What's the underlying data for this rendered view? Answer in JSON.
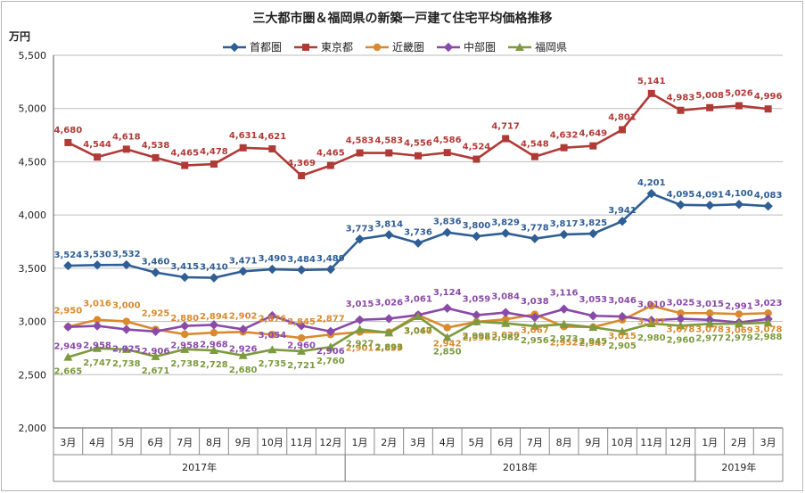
{
  "chart_data": {
    "type": "line",
    "title": "三大都市圏＆福岡県の新築一戸建て住宅平均価格推移",
    "ylabel": "万円",
    "ylim": [
      2000,
      5500
    ],
    "yticks": [
      "2,000",
      "2,500",
      "3,000",
      "3,500",
      "4,000",
      "4,500",
      "5,000",
      "5,500"
    ],
    "categories": [
      "3月",
      "4月",
      "5月",
      "6月",
      "7月",
      "8月",
      "9月",
      "10月",
      "11月",
      "12月",
      "1月",
      "2月",
      "3月",
      "4月",
      "5月",
      "6月",
      "7月",
      "8月",
      "9月",
      "10月",
      "11月",
      "12月",
      "1月",
      "2月",
      "3月"
    ],
    "years": [
      {
        "label": "2017年",
        "from": 0,
        "to": 9
      },
      {
        "label": "2018年",
        "from": 10,
        "to": 21
      },
      {
        "label": "2019年",
        "from": 22,
        "to": 24
      }
    ],
    "grid": "horizontal",
    "legend_position": "top",
    "series": [
      {
        "name": "首都圏",
        "color": "#2f5e95",
        "marker": "diamond",
        "values": [
          3524,
          3530,
          3532,
          3460,
          3415,
          3410,
          3471,
          3490,
          3484,
          3489,
          3773,
          3814,
          3736,
          3836,
          3800,
          3829,
          3778,
          3817,
          3825,
          3941,
          4201,
          4095,
          4091,
          4100,
          4083
        ]
      },
      {
        "name": "東京都",
        "color": "#b03a36",
        "marker": "square",
        "values": [
          4680,
          4544,
          4618,
          4538,
          4465,
          4478,
          4631,
          4621,
          4369,
          4465,
          4583,
          4583,
          4556,
          4586,
          4524,
          4717,
          4548,
          4632,
          4649,
          4801,
          5141,
          4983,
          5008,
          5026,
          4996
        ]
      },
      {
        "name": "近畿圏",
        "color": "#d98a2e",
        "marker": "circle",
        "values": [
          2950,
          3016,
          3000,
          2925,
          2880,
          2894,
          2902,
          2876,
          2845,
          2877,
          2901,
          2899,
          3060,
          2942,
          2996,
          3020,
          3067,
          2952,
          2947,
          3015,
          3147,
          3078,
          3078,
          3069,
          3078
        ]
      },
      {
        "name": "中部圏",
        "color": "#8a4aa8",
        "marker": "xdiamond",
        "values": [
          2949,
          2958,
          2925,
          2906,
          2958,
          2968,
          2926,
          3054,
          2960,
          2906,
          3015,
          3026,
          3061,
          3124,
          3059,
          3084,
          3038,
          3116,
          3053,
          3046,
          3010,
          3025,
          3015,
          2991,
          3023
        ]
      },
      {
        "name": "福岡県",
        "color": "#7c9a3e",
        "marker": "triangle",
        "values": [
          2665,
          2747,
          2738,
          2671,
          2738,
          2728,
          2680,
          2735,
          2721,
          2760,
          2927,
          2893,
          3047,
          2850,
          2998,
          2982,
          2956,
          2973,
          2945,
          2905,
          2980,
          2960,
          2977,
          2979,
          2988
        ]
      }
    ],
    "data_labels": [
      [
        "3,524",
        "3,530",
        "3,532",
        "3,460",
        "3,415",
        "3,410",
        "3,471",
        "3,490",
        "3,484",
        "3,489",
        "3,773",
        "3,814",
        "3,736",
        "3,836",
        "3,800",
        "3,829",
        "3,778",
        "3,817",
        "3,825",
        "3,941",
        "4,201",
        "4,095",
        "4,091",
        "4,100",
        "4,083"
      ],
      [
        "4,680",
        "4,544",
        "4,618",
        "4,538",
        "4,465",
        "4,478",
        "4,631",
        "4,621",
        "4,369",
        "4,465",
        "4,583",
        "4,583",
        "4,556",
        "4,586",
        "4,524",
        "4,717",
        "4,548",
        "4,632",
        "4,649",
        "4,801",
        "5,141",
        "4,983",
        "5,008",
        "5,026",
        "4,996"
      ],
      [
        "2,950",
        "3,016",
        "3,000",
        "2,925",
        "2,880",
        "2,894",
        "2,902",
        "2,876",
        "2,845",
        "2,877",
        "2,901",
        "2,899",
        "3,060",
        "2,942",
        "2,996",
        "3,020",
        "3,067",
        "2,952",
        "2,947",
        "3,015",
        "3,147",
        "3,078",
        "3,078",
        "3,069",
        "3,078"
      ],
      [
        "2,949",
        "2,958",
        "2,925",
        "2,906",
        "2,958",
        "2,968",
        "2,926",
        "3,054",
        "2,960",
        "2,906",
        "3,015",
        "3,026",
        "3,061",
        "3,124",
        "3,059",
        "3,084",
        "3,038",
        "3,116",
        "3,053",
        "3,046",
        "3,010",
        "3,025",
        "3,015",
        "2,991",
        "3,023"
      ],
      [
        "2,665",
        "2,747",
        "2,738",
        "2,671",
        "2,738",
        "2,728",
        "2,680",
        "2,735",
        "2,721",
        "2,760",
        "2,927",
        "2,893",
        "3,047",
        "2,850",
        "2,998",
        "2,982",
        "2,956",
        "2,973",
        "2,945",
        "2,905",
        "2,980",
        "2,960",
        "2,977",
        "2,979",
        "2,988"
      ]
    ]
  }
}
